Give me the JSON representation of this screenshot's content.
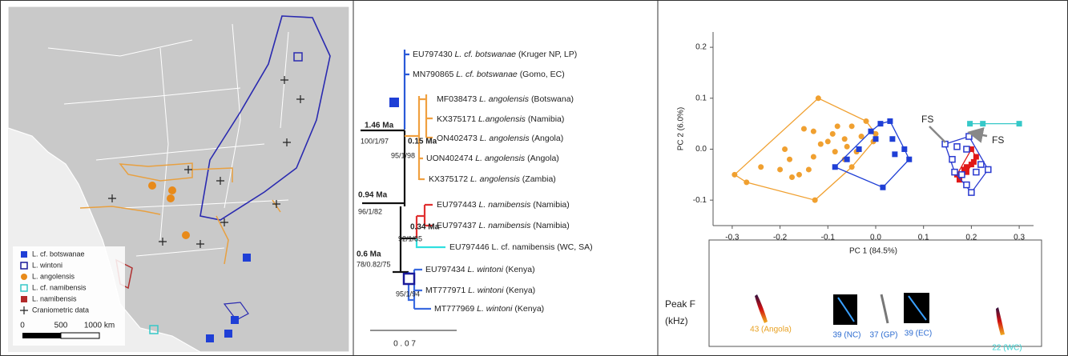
{
  "map": {
    "legend": [
      {
        "text": "L. cf. botswanae",
        "color": "#1f3fd6",
        "marker": "square"
      },
      {
        "text": "L. wintoni",
        "color": "#1a1a9a",
        "marker": "square-open"
      },
      {
        "text": "L. angolensis",
        "color": "#e88a1a",
        "marker": "circle"
      },
      {
        "text": "L. cf. namibensis",
        "color": "#36c8c8",
        "marker": "square-open"
      },
      {
        "text": "L. namibensis",
        "color": "#b22a2a",
        "marker": "square"
      },
      {
        "text": "Craniometric data",
        "color": "#222222",
        "marker": "cross"
      }
    ],
    "scale": [
      "0",
      "500",
      "1000 km"
    ]
  },
  "tree": {
    "leaves": [
      {
        "id": "EU797430",
        "species": "L. cf. botswanae",
        "locality": "(Kruger NP, LP)"
      },
      {
        "id": "MN790865",
        "species": "L. cf. botswanae",
        "locality": "(Gomo, EC)"
      },
      {
        "id": "MF038473",
        "species": "L. angolensis",
        "locality": "(Botswana)"
      },
      {
        "id": "KX375171",
        "species": "L.angolensis",
        "locality": "(Namibia)"
      },
      {
        "id": "ON402473",
        "species": "L. angolensis",
        "locality": "(Angola)"
      },
      {
        "id": "UON402474",
        "species": "L. angolensis",
        "locality": "(Angola)"
      },
      {
        "id": "KX375172",
        "species": "L. angolensis",
        "locality": "(Zambia)"
      },
      {
        "id": "EU797443",
        "species": "L. namibensis",
        "locality": "(Namibia)"
      },
      {
        "id": "EU797437",
        "species": "L. namibensis",
        "locality": "(Namibia)"
      },
      {
        "id": "EU797446",
        "species": "L. cf. namibensis",
        "locality": "(WC, SA)"
      },
      {
        "id": "EU797434",
        "species": "L. wintoni",
        "locality": "(Kenya)"
      },
      {
        "id": "MT777971",
        "species": "L. wintoni",
        "locality": "(Kenya)"
      },
      {
        "id": "MT777969",
        "species": "L. wintoni",
        "locality": "(Kenya)"
      }
    ],
    "nodes": [
      {
        "age": "1.46 Ma",
        "support": "100/1/97"
      },
      {
        "age": "0.15 Ma",
        "support": "95/1/98"
      },
      {
        "age": "0.94 Ma",
        "support": "96/1/82"
      },
      {
        "age": "0.34 Ma",
        "support": "92/1/85"
      },
      {
        "age": "0.6 Ma",
        "support": "78/0.82/75"
      },
      {
        "support": "95/1/94"
      }
    ],
    "scale": "0 . 0 7"
  },
  "chart_data": {
    "type": "scatter",
    "xlabel": "PC 1 (84.5%)",
    "ylabel": "PC 2 (6.0%)",
    "xlim": [
      -0.34,
      0.33
    ],
    "ylim": [
      -0.15,
      0.23
    ],
    "xticks": [
      -0.3,
      -0.2,
      -0.1,
      {
        "value": 0,
        "label": "0.0"
      },
      0.1,
      0.2,
      0.3
    ],
    "yticks": [
      -0.1,
      {
        "value": 0,
        "label": "0.0"
      },
      0.1,
      0.2
    ],
    "annotations": [
      "FS",
      "FS"
    ],
    "series": [
      {
        "color": "#f0a030",
        "marker": "circle",
        "hull": true,
        "x": [
          -0.295,
          -0.12,
          -0.19,
          -0.18,
          -0.24,
          -0.175,
          -0.16,
          -0.14,
          -0.13,
          -0.115,
          -0.09,
          -0.08,
          -0.065,
          -0.05,
          -0.03,
          -0.02,
          -0.005,
          -0.085,
          -0.1,
          -0.15,
          -0.13,
          -0.065,
          -0.05,
          -0.04,
          0.0,
          -0.06,
          -0.27,
          -0.2,
          -0.127
        ],
        "y": [
          -0.05,
          0.1,
          0.0,
          -0.02,
          -0.035,
          -0.055,
          -0.05,
          -0.04,
          -0.015,
          0.01,
          0.03,
          0.045,
          0.02,
          0.045,
          0.025,
          0.055,
          0.015,
          -0.005,
          0.015,
          0.04,
          0.035,
          -0.02,
          -0.035,
          -0.005,
          0.03,
          0.005,
          -0.065,
          -0.04,
          -0.1
        ]
      },
      {
        "color": "#1f3fd6",
        "marker": "square",
        "hull": true,
        "x": [
          -0.085,
          -0.06,
          -0.035,
          0.0,
          0.01,
          0.03,
          0.035,
          0.04,
          0.06,
          0.07,
          0.015,
          -0.01
        ],
        "y": [
          -0.035,
          -0.02,
          0.0,
          0.02,
          0.05,
          0.055,
          0.02,
          -0.01,
          0.0,
          -0.02,
          -0.075,
          0.035
        ]
      },
      {
        "color": "#36c8c8",
        "marker": "square",
        "hull": true,
        "x": [
          0.197,
          0.224,
          0.3
        ],
        "y": [
          0.05,
          0.05,
          0.05
        ]
      },
      {
        "color": "#e01818",
        "marker": "square",
        "hull": true,
        "x": [
          0.17,
          0.175,
          0.185,
          0.19,
          0.2,
          0.205,
          0.21,
          0.2,
          0.19
        ],
        "y": [
          -0.05,
          -0.06,
          -0.04,
          -0.035,
          -0.03,
          -0.025,
          -0.015,
          0.0,
          -0.045
        ]
      },
      {
        "color": "#2a3ad0",
        "marker": "square-open",
        "hull": true,
        "x": [
          0.145,
          0.16,
          0.165,
          0.18,
          0.19,
          0.2,
          0.21,
          0.22,
          0.235,
          0.195,
          0.19,
          0.17
        ],
        "y": [
          0.01,
          -0.02,
          -0.045,
          -0.05,
          -0.07,
          -0.085,
          -0.045,
          -0.03,
          -0.04,
          0.025,
          0.0,
          0.005
        ]
      }
    ]
  },
  "calls": {
    "label": [
      "Peak F",
      "(kHz)"
    ],
    "items": [
      "43 (Angola)",
      "39 (NC)",
      "37 (GP)",
      "39 (EC)",
      "22 (WC)"
    ]
  }
}
